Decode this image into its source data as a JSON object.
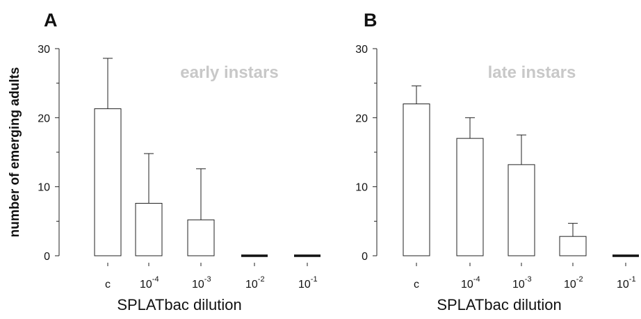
{
  "chart_data": [
    {
      "type": "bar",
      "panel_label": "A",
      "annotation": "early instars",
      "ylabel": "number of emerging adults",
      "xlabel": "SPLATbac dilution",
      "categories": [
        {
          "base": "c",
          "exp": ""
        },
        {
          "base": "10",
          "exp": "-4"
        },
        {
          "base": "10",
          "exp": "-3"
        },
        {
          "base": "10",
          "exp": "-2"
        },
        {
          "base": "10",
          "exp": "-1"
        }
      ],
      "values": [
        21.3,
        7.6,
        5.2,
        0,
        0
      ],
      "error_upper": [
        28.6,
        14.8,
        12.6,
        null,
        null
      ],
      "ylim": [
        0,
        30
      ],
      "yticks": [
        0,
        10,
        20,
        30
      ]
    },
    {
      "type": "bar",
      "panel_label": "B",
      "annotation": "late instars",
      "xlabel": "SPLATbac dilution",
      "categories": [
        {
          "base": "c",
          "exp": ""
        },
        {
          "base": "10",
          "exp": "-4"
        },
        {
          "base": "10",
          "exp": "-3"
        },
        {
          "base": "10",
          "exp": "-2"
        },
        {
          "base": "10",
          "exp": "-1"
        }
      ],
      "values": [
        22.0,
        17.0,
        13.2,
        2.8,
        0
      ],
      "error_upper": [
        24.6,
        20.0,
        17.5,
        4.7,
        null
      ],
      "ylim": [
        0,
        30
      ],
      "yticks": [
        0,
        10,
        20,
        30
      ]
    }
  ]
}
